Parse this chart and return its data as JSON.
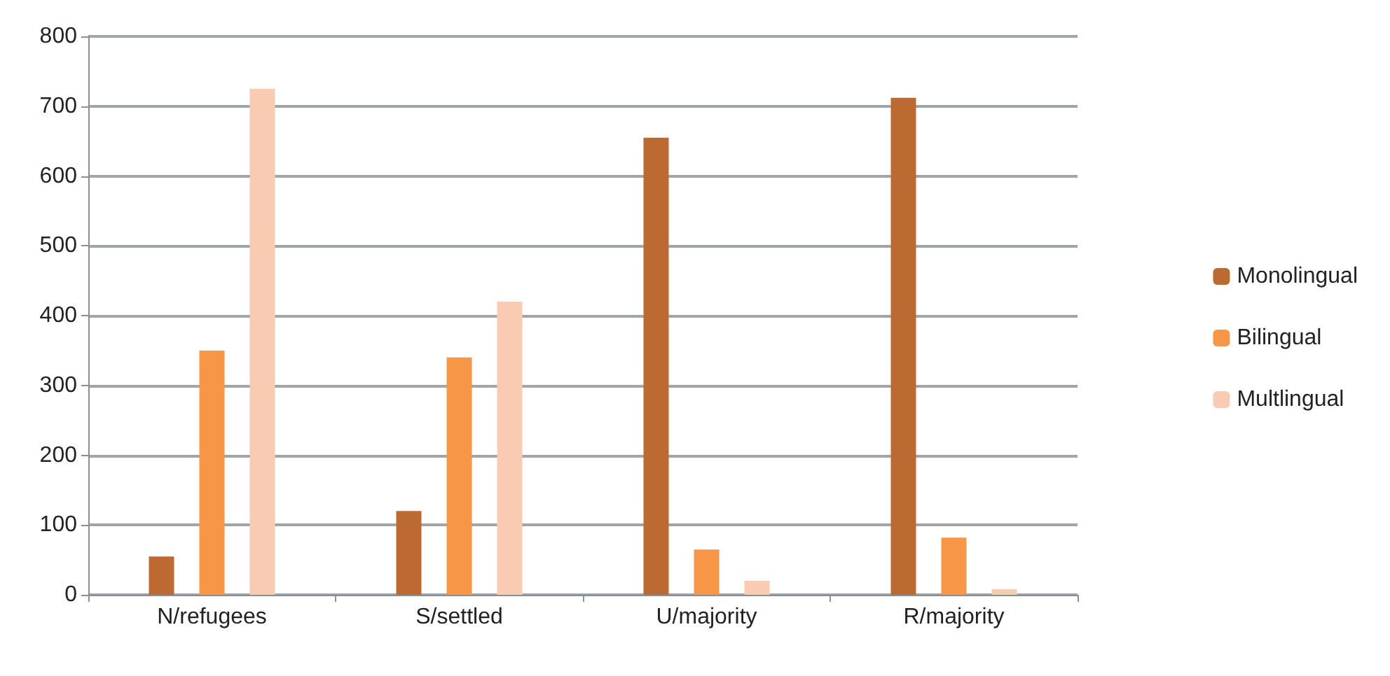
{
  "chart_data": {
    "type": "bar",
    "categories": [
      "N/refugees",
      "S/settled",
      "U/majority",
      "R/majority"
    ],
    "series": [
      {
        "name": "Monolingual",
        "color": "#bc6a32",
        "values": [
          55,
          120,
          655,
          712
        ]
      },
      {
        "name": "Bilingual",
        "color": "#f79646",
        "values": [
          350,
          340,
          65,
          82
        ]
      },
      {
        "name": "Multlingual",
        "color": "#f9cbb2",
        "values": [
          725,
          420,
          20,
          8
        ]
      }
    ],
    "ylim": [
      0,
      800
    ],
    "yticks": [
      0,
      100,
      200,
      300,
      400,
      500,
      600,
      700,
      800
    ],
    "grid": "y",
    "legend": "right"
  }
}
